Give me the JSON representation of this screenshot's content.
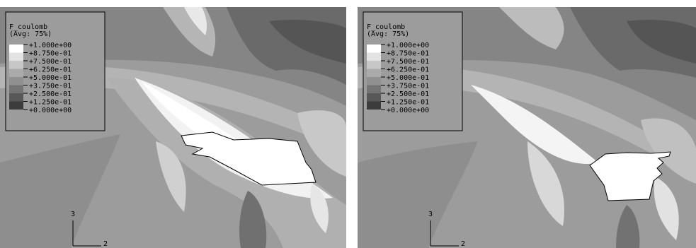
{
  "panels": [
    {
      "legend": {
        "title": "F_coulomb",
        "subtitle": "(Avg: 75%)",
        "levels": [
          "+1.000e+00",
          "+8.750e-01",
          "+7.500e-01",
          "+6.250e-01",
          "+5.000e-01",
          "+3.750e-01",
          "+2.500e-01",
          "+1.250e-01",
          "+0.000e+00"
        ]
      },
      "triad": {
        "vertical": "3",
        "horizontal": "2"
      }
    },
    {
      "legend": {
        "title": "F_coulomb",
        "subtitle": "(Avg: 75%)",
        "levels": [
          "+1.000e+00",
          "+8.750e-01",
          "+7.500e-01",
          "+6.250e-01",
          "+5.000e-01",
          "+3.750e-01",
          "+2.500e-01",
          "+1.250e-01",
          "+0.000e+00"
        ]
      },
      "triad": {
        "vertical": "3",
        "horizontal": "2"
      }
    }
  ]
}
